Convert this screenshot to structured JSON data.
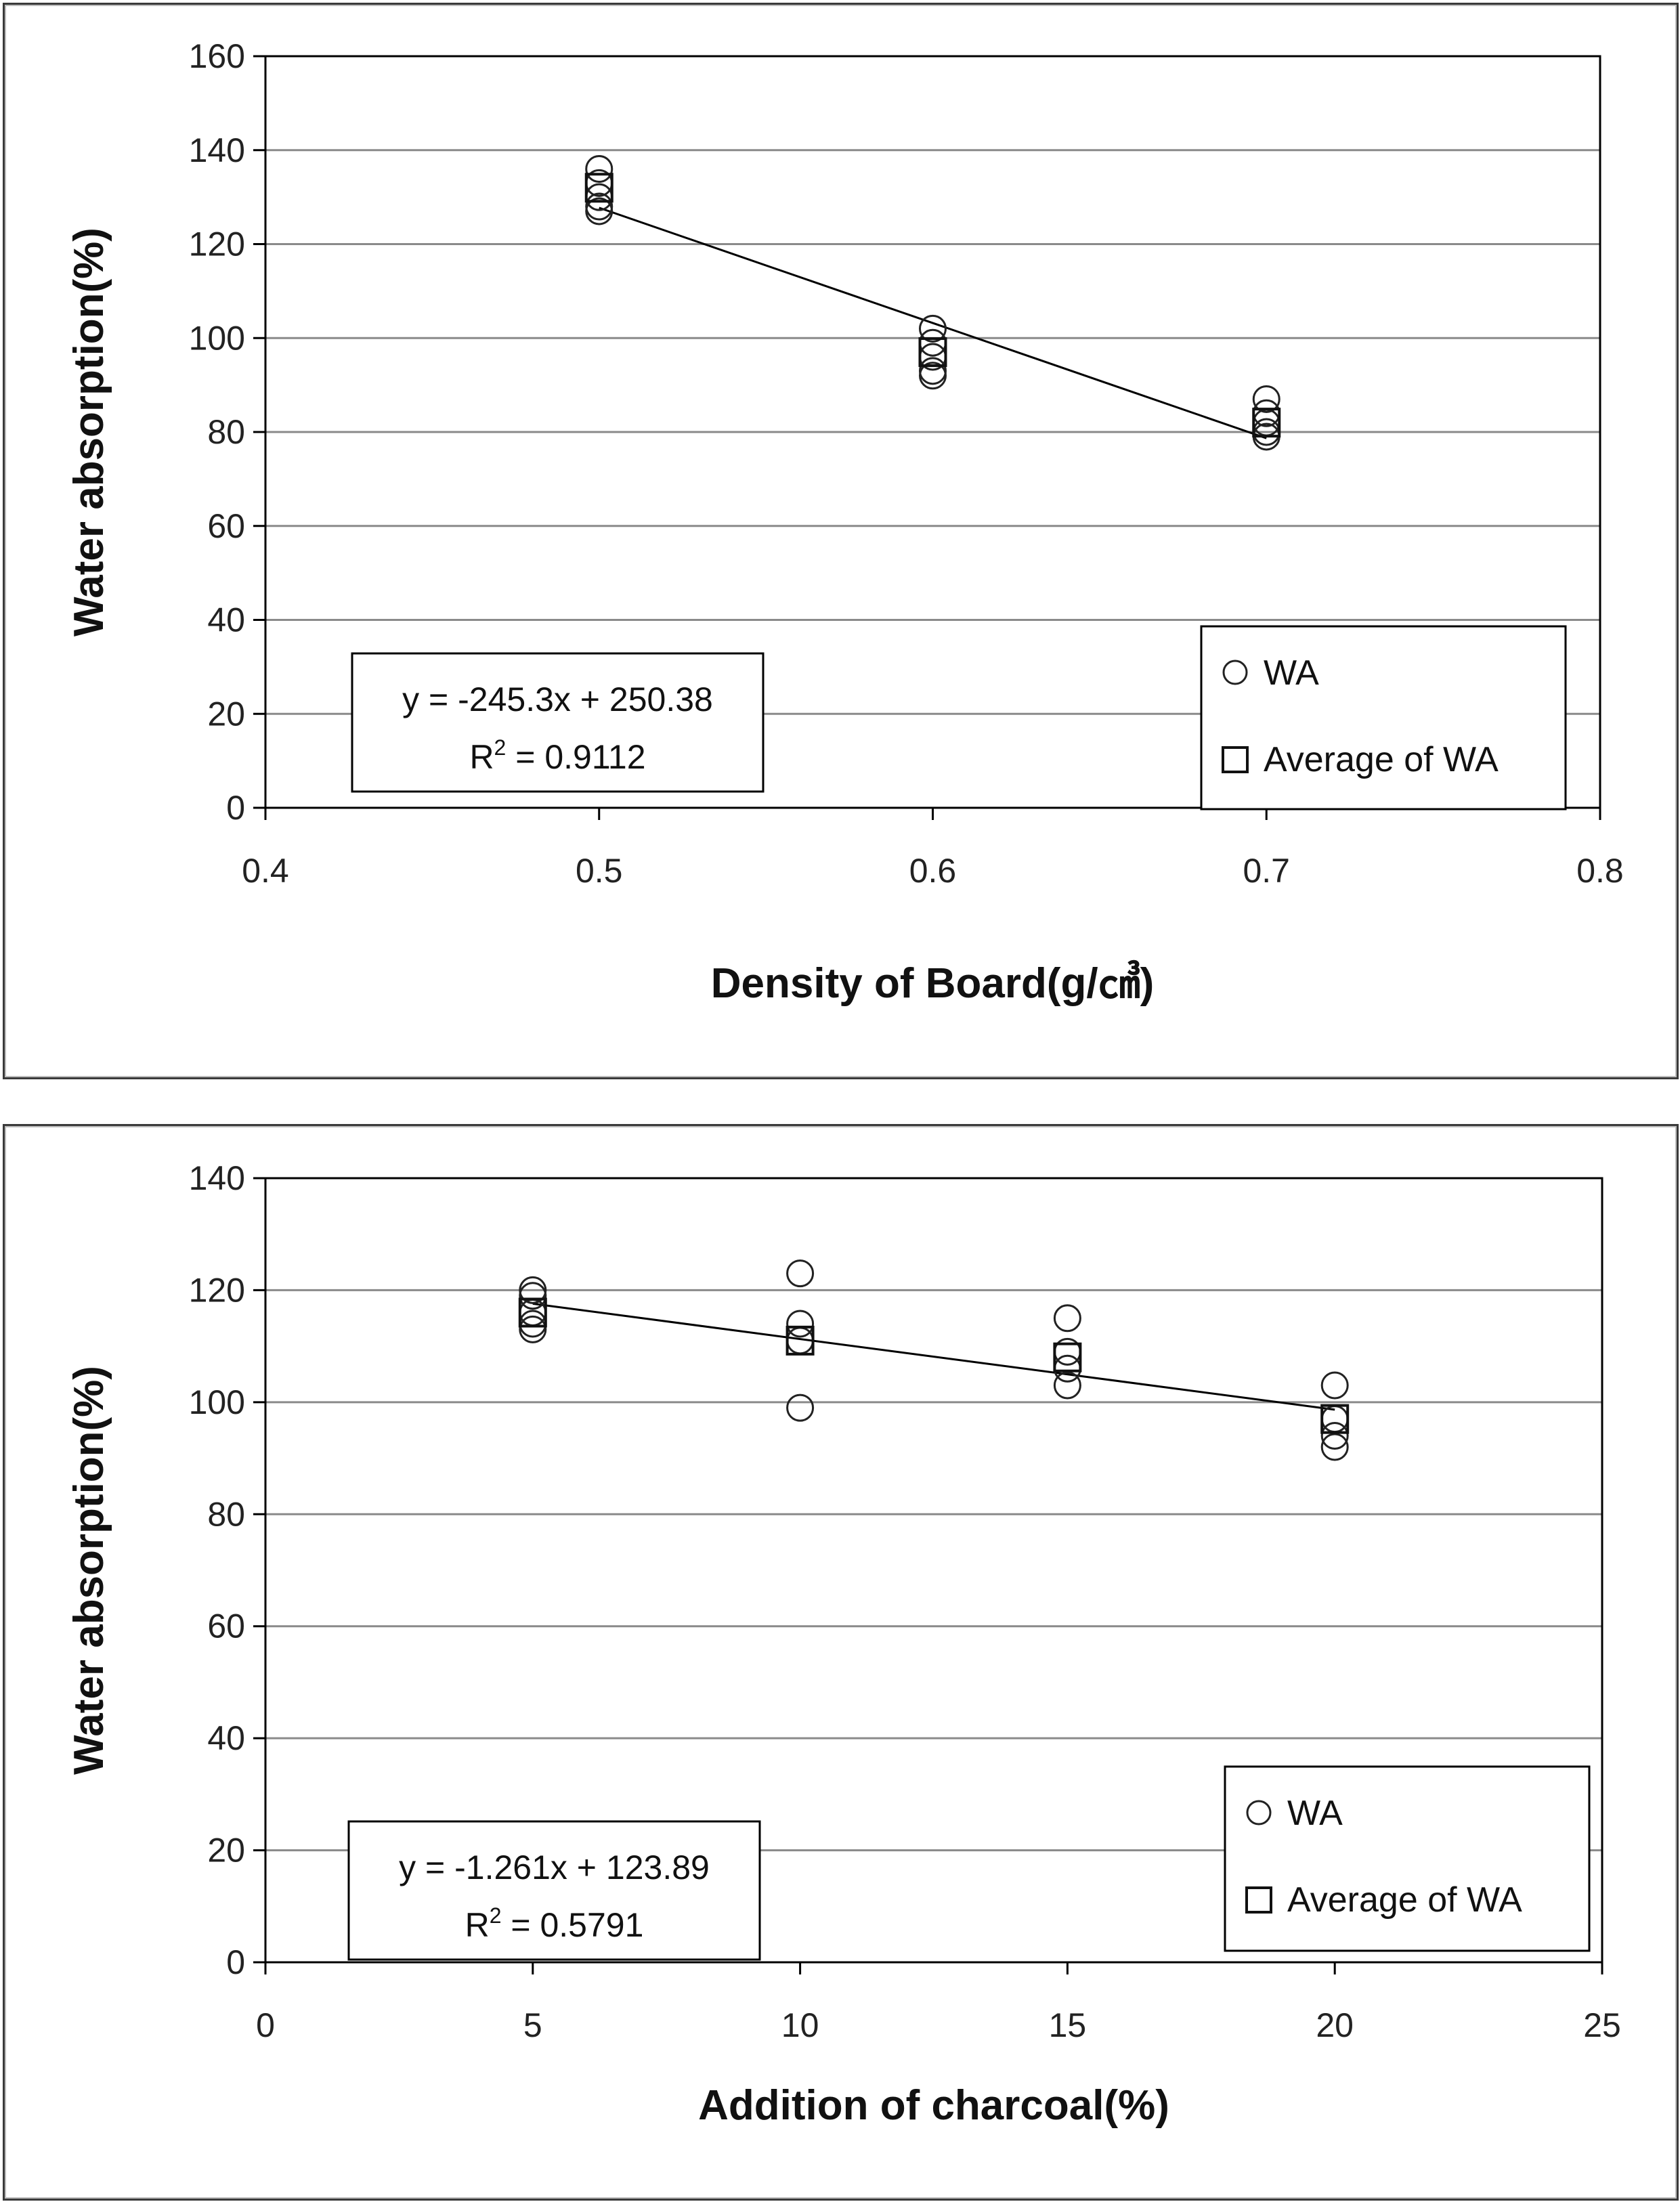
{
  "chart_data": [
    {
      "type": "scatter",
      "xlabel": "Density of Board(g/㎤)",
      "ylabel": "Water absorption(%)",
      "xlim": [
        0.4,
        0.8
      ],
      "ylim": [
        0,
        160
      ],
      "xticks": [
        "0.4",
        "0.5",
        "0.6",
        "0.7",
        "0.8"
      ],
      "yticks": [
        "0",
        "20",
        "40",
        "60",
        "80",
        "100",
        "120",
        "140",
        "160"
      ],
      "grid": "horizontal",
      "legend_position": "bottom-right",
      "series": [
        {
          "name": "WA",
          "marker": "circle",
          "points": [
            [
              0.5,
              136
            ],
            [
              0.5,
              133
            ],
            [
              0.5,
              130
            ],
            [
              0.5,
              128
            ],
            [
              0.5,
              127
            ],
            [
              0.6,
              102
            ],
            [
              0.6,
              99
            ],
            [
              0.6,
              96
            ],
            [
              0.6,
              93
            ],
            [
              0.6,
              92
            ],
            [
              0.7,
              87
            ],
            [
              0.7,
              84
            ],
            [
              0.7,
              82
            ],
            [
              0.7,
              80
            ],
            [
              0.7,
              79
            ]
          ]
        },
        {
          "name": "Average of WA",
          "marker": "square",
          "points": [
            [
              0.5,
              132
            ],
            [
              0.6,
              97
            ],
            [
              0.7,
              82
            ]
          ]
        }
      ],
      "trendline": {
        "slope": -245.3,
        "intercept": 250.38,
        "x_range": [
          0.5,
          0.7
        ],
        "equation": "y = -245.3x + 250.38",
        "r2_prefix": "R",
        "r2_sup": "2",
        "r2_value": " = 0.9112"
      }
    },
    {
      "type": "scatter",
      "xlabel": "Addition of charcoal(%)",
      "ylabel": "Water absorption(%)",
      "xlim": [
        0,
        25
      ],
      "ylim": [
        0,
        140
      ],
      "xticks": [
        "0",
        "5",
        "10",
        "15",
        "20",
        "25"
      ],
      "yticks": [
        "0",
        "20",
        "40",
        "60",
        "80",
        "100",
        "120",
        "140"
      ],
      "grid": "horizontal",
      "legend_position": "bottom-right",
      "series": [
        {
          "name": "WA",
          "marker": "circle",
          "points": [
            [
              5,
              120
            ],
            [
              5,
              119
            ],
            [
              5,
              116
            ],
            [
              5,
              114
            ],
            [
              5,
              113
            ],
            [
              10,
              123
            ],
            [
              10,
              114
            ],
            [
              10,
              111
            ],
            [
              10,
              99
            ],
            [
              15,
              115
            ],
            [
              15,
              109
            ],
            [
              15,
              106
            ],
            [
              15,
              103
            ],
            [
              20,
              103
            ],
            [
              20,
              97
            ],
            [
              20,
              94
            ],
            [
              20,
              92
            ]
          ]
        },
        {
          "name": "Average of WA",
          "marker": "square",
          "points": [
            [
              5,
              116
            ],
            [
              10,
              111
            ],
            [
              15,
              108
            ],
            [
              20,
              97
            ]
          ]
        }
      ],
      "trendline": {
        "slope": -1.261,
        "intercept": 123.89,
        "x_range": [
          5,
          20
        ],
        "equation": "y = -1.261x + 123.89",
        "r2_prefix": "R",
        "r2_sup": "2",
        "r2_value": " = 0.5791"
      }
    }
  ]
}
